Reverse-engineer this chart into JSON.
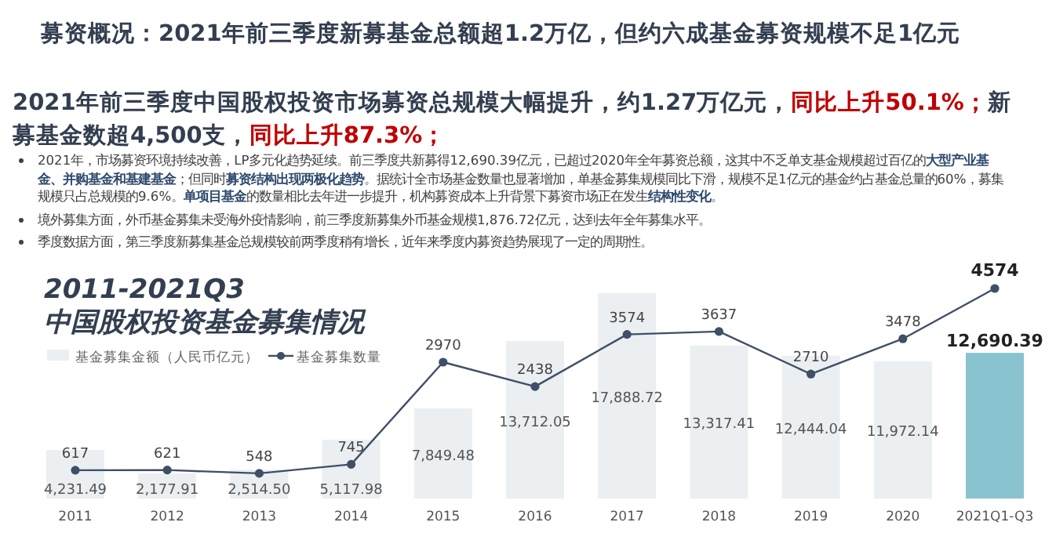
{
  "chart_data": {
    "type": "bar",
    "title": "2011-2021Q3",
    "subtitle": "中国股权投资基金募集情况",
    "annotations": [
      "募资概况：2021年前三季度新募基金总额超1.2万亿，但约六成基金募资规模不足1亿元",
      "2021年前三季度中国股权投资市场募资总规模大幅提升，约1.27万亿元，",
      "同比上升50.1%；",
      "新募基金数超4,500支，",
      "同比上升87.3%；",
      "2021年，市场募资环境持续改善，LP多元化趋势延续。前三季度共新募得12,690.39亿元，已超过2020年全年募资总额，这其中不乏单支基金规模超过百亿的**大型产业基金、并购基金和基建基金**；但同时**募资结构出现两极化趋势**。据统计全市场基金数量也显著增加，单基金募集规模同比下滑，规模不足1亿元的基金约占基金总量的60%，募集规模只占总规模的9.6%。**单项目基金**的数量相比去年进一步提升，机构募资成本上升背景下募资市场正在发生**结构性变化**。",
      "境外募集方面，外币基金募集未受海外疫情影响，前三季度新募集外币基金规模1,876.72亿元，达到去年全年募集水平。",
      "季度数据方面，第三季度新募集基金总规模较前两季度稍有增长，近年来季度内募资趋势展现了一定的周期性。"
    ],
    "categories": [
      "2011",
      "2012",
      "2013",
      "2014",
      "2015",
      "2016",
      "2017",
      "2018",
      "2019",
      "2020",
      "2021Q1-Q3"
    ],
    "series": [
      {
        "name": "基金募集金额（人民币亿元）",
        "color": "#ebeff2",
        "colors": [
          "#ebeff2",
          "#ebeff2",
          "#ebeff2",
          "#ebeff2",
          "#ebeff2",
          "#ebeff2",
          "#ebeff2",
          "#ebeff2",
          "#ebeff2",
          "#ebeff2",
          "#88c3cf"
        ],
        "values": [
          4231.49,
          2177.91,
          2514.5,
          5117.98,
          7849.48,
          13712.05,
          17888.72,
          13317.41,
          12444.04,
          11972.14,
          12690.39
        ],
        "value_labels": [
          "4,231.49",
          "2,177.91",
          "2,514.50",
          "5,117.98",
          "7,849.48",
          "13,712.05",
          "17,888.72",
          "13,317.41",
          "12,444.04",
          "11,972.14",
          "12,690.39"
        ]
      },
      {
        "name": "基金募集数量",
        "type": "line",
        "axis": "y2",
        "color": "#3e4f66",
        "marker": "circle",
        "values": [
          617,
          621,
          548,
          745,
          2970,
          2438,
          3574,
          3637,
          2710,
          3478,
          4574
        ]
      }
    ],
    "data_labels": true,
    "legend": "top left"
  }
}
